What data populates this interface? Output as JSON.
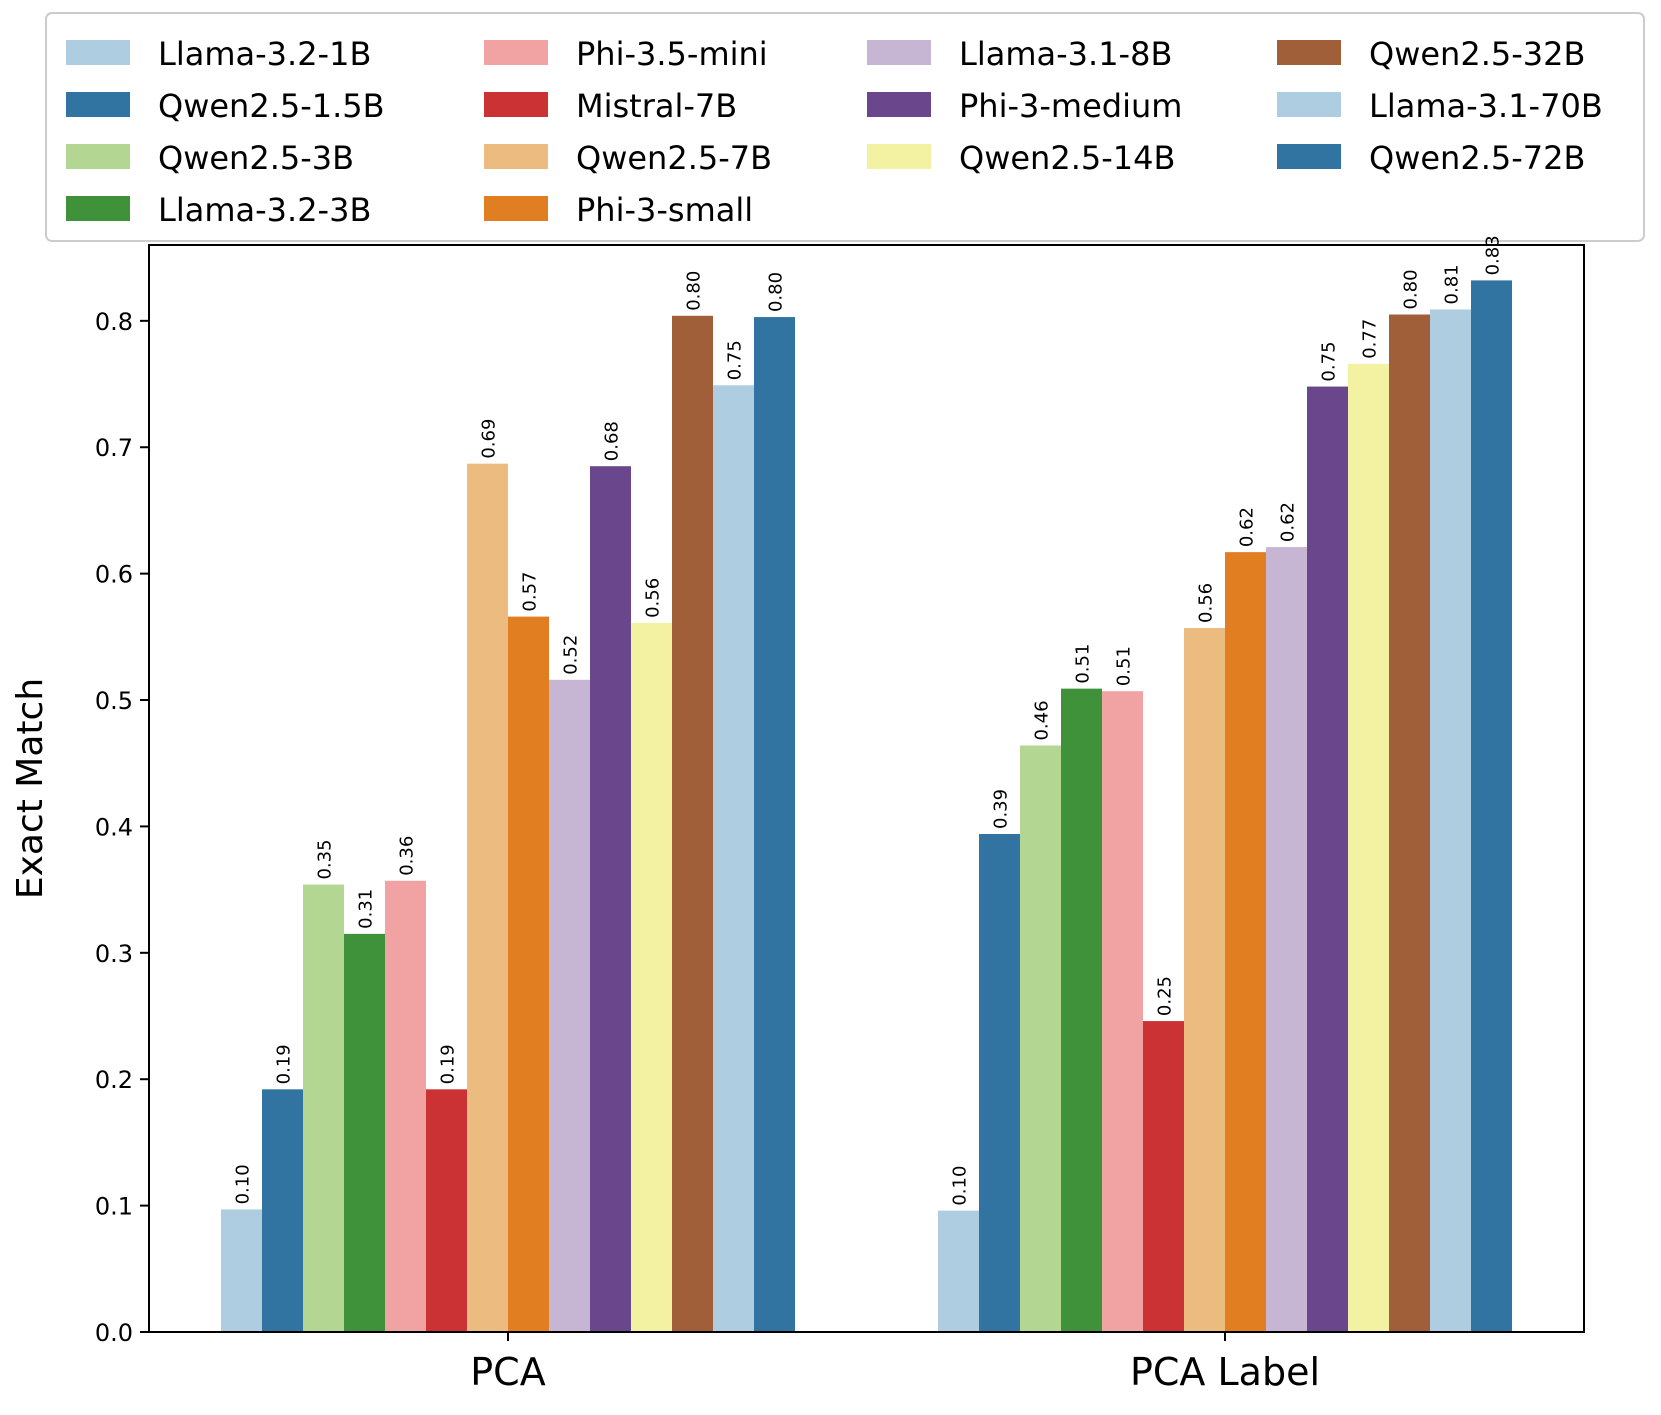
{
  "chart_data": {
    "type": "bar",
    "title": "",
    "xlabel": "",
    "ylabel": "Exact Match",
    "ylim": [
      0,
      0.86
    ],
    "yticks": [
      "0.0",
      "0.1",
      "0.2",
      "0.3",
      "0.4",
      "0.5",
      "0.6",
      "0.7",
      "0.8"
    ],
    "categories": [
      "PCA",
      "PCA Label"
    ],
    "legend_position": "top",
    "grid": false,
    "series": [
      {
        "name": "Llama-3.2-1B",
        "color": "#aecde1",
        "values": [
          0.097,
          0.096
        ],
        "labels": [
          "0.10",
          "0.10"
        ]
      },
      {
        "name": "Qwen2.5-1.5B",
        "color": "#3274a1",
        "values": [
          0.192,
          0.394
        ],
        "labels": [
          "0.19",
          "0.39"
        ]
      },
      {
        "name": "Qwen2.5-3B",
        "color": "#b3d693",
        "values": [
          0.354,
          0.464
        ],
        "labels": [
          "0.35",
          "0.46"
        ]
      },
      {
        "name": "Llama-3.2-3B",
        "color": "#3f913a",
        "values": [
          0.315,
          0.509
        ],
        "labels": [
          "0.31",
          "0.51"
        ]
      },
      {
        "name": "Phi-3.5-mini",
        "color": "#f1a3a3",
        "values": [
          0.357,
          0.507
        ],
        "labels": [
          "0.36",
          "0.51"
        ]
      },
      {
        "name": "Mistral-7B",
        "color": "#cb3234",
        "values": [
          0.192,
          0.246
        ],
        "labels": [
          "0.19",
          "0.25"
        ]
      },
      {
        "name": "Qwen2.5-7B",
        "color": "#ebbb80",
        "values": [
          0.687,
          0.557
        ],
        "labels": [
          "0.69",
          "0.56"
        ]
      },
      {
        "name": "Phi-3-small",
        "color": "#e17e22",
        "values": [
          0.566,
          0.617
        ],
        "labels": [
          "0.57",
          "0.62"
        ]
      },
      {
        "name": "Llama-3.1-8B",
        "color": "#c7b6d3",
        "values": [
          0.516,
          0.621
        ],
        "labels": [
          "0.52",
          "0.62"
        ]
      },
      {
        "name": "Phi-3-medium",
        "color": "#6a478d",
        "values": [
          0.685,
          0.748
        ],
        "labels": [
          "0.68",
          "0.75"
        ]
      },
      {
        "name": "Qwen2.5-14B",
        "color": "#f2f2a2",
        "values": [
          0.561,
          0.766
        ],
        "labels": [
          "0.56",
          "0.77"
        ]
      },
      {
        "name": "Qwen2.5-32B",
        "color": "#a05f38",
        "values": [
          0.804,
          0.805
        ],
        "labels": [
          "0.80",
          "0.80"
        ]
      },
      {
        "name": "Llama-3.1-70B",
        "color": "#aecde1",
        "values": [
          0.749,
          0.809
        ],
        "labels": [
          "0.75",
          "0.81"
        ]
      },
      {
        "name": "Qwen2.5-72B",
        "color": "#3274a1",
        "values": [
          0.803,
          0.832
        ],
        "labels": [
          "0.80",
          "0.83"
        ]
      }
    ]
  }
}
